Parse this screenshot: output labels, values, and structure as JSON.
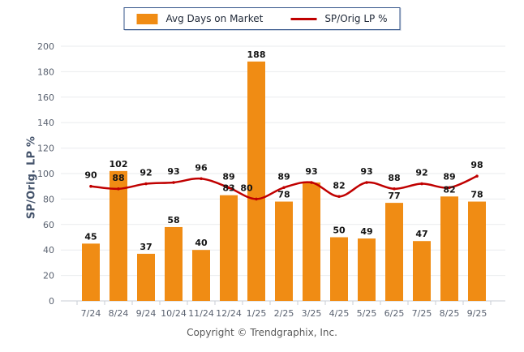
{
  "legend": {
    "bar_label": "Avg Days on Market",
    "line_label": "SP/Orig LP %"
  },
  "y_axis": {
    "title": "SP/Orig. LP %"
  },
  "footer": {
    "copyright": "Copyright © Trendgraphix, Inc."
  },
  "colors": {
    "bar": "#F08C14",
    "line": "#C00000",
    "grid": "#E9EBEE",
    "axis": "#C9CED6",
    "tick_text": "#5A6270",
    "value_text": "#141414"
  },
  "chart_data": {
    "type": "bar",
    "subtype": "bar-and-line-combo",
    "categories": [
      "7/24",
      "8/24",
      "9/24",
      "10/24",
      "11/24",
      "12/24",
      "1/25",
      "2/25",
      "3/25",
      "4/25",
      "5/25",
      "6/25",
      "7/25",
      "8/25",
      "9/25"
    ],
    "series": [
      {
        "name": "Avg Days on Market",
        "type": "bar",
        "color": "#F08C14",
        "values": [
          45,
          102,
          37,
          58,
          40,
          83,
          188,
          78,
          93,
          50,
          49,
          77,
          47,
          82,
          78
        ]
      },
      {
        "name": "SP/Orig LP %",
        "type": "line",
        "color": "#C00000",
        "values": [
          90,
          88,
          92,
          93,
          96,
          89,
          80,
          89,
          93,
          82,
          93,
          88,
          92,
          89,
          98
        ],
        "label_dx": [
          0,
          0,
          0,
          0,
          0,
          0,
          -12,
          0,
          0,
          0,
          0,
          0,
          0,
          0,
          0
        ]
      }
    ],
    "title": "",
    "xlabel": "",
    "ylabel": "SP/Orig. LP %",
    "ylim": [
      0,
      200
    ],
    "yticks": [
      0,
      20,
      40,
      60,
      80,
      100,
      120,
      140,
      160,
      180,
      200
    ],
    "grid": true,
    "legend_position": "top-center",
    "annotations": "data labels shown for every bar and line point; at 3/25 bar and line share value 93 (single label)"
  }
}
